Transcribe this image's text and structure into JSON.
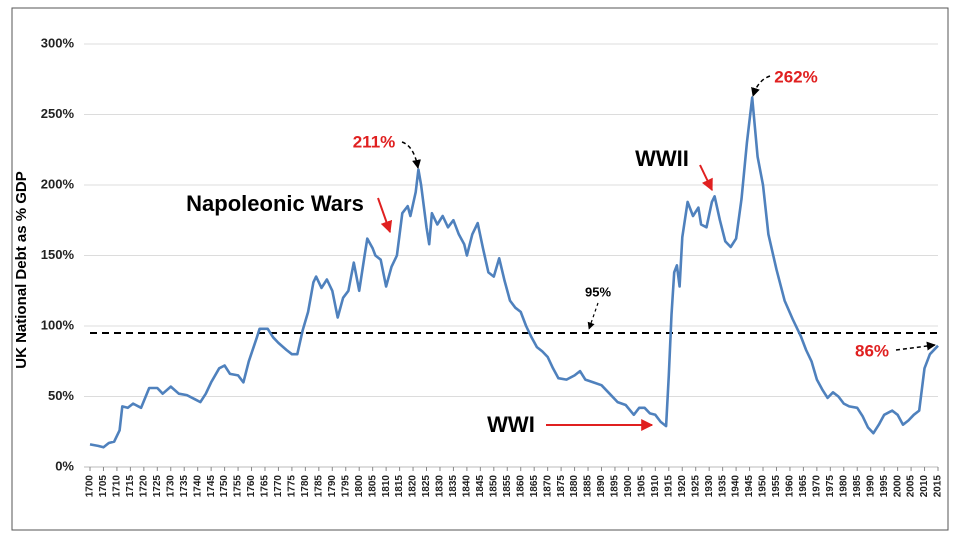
{
  "chart_data": {
    "type": "line",
    "y_label": "UK National Debt as % GDP",
    "x": [
      1700,
      1703,
      1705,
      1707,
      1709,
      1711,
      1712,
      1714,
      1716,
      1719,
      1722,
      1725,
      1727,
      1730,
      1733,
      1736,
      1739,
      1741,
      1743,
      1745,
      1748,
      1750,
      1752,
      1755,
      1757,
      1759,
      1762,
      1763,
      1766,
      1768,
      1770,
      1773,
      1775,
      1777,
      1779,
      1781,
      1783,
      1784,
      1786,
      1788,
      1790,
      1792,
      1794,
      1796,
      1798,
      1800,
      1802,
      1803,
      1805,
      1806,
      1808,
      1810,
      1812,
      1814,
      1816,
      1818,
      1819,
      1821,
      1822,
      1823,
      1825,
      1826,
      1827,
      1829,
      1831,
      1833,
      1835,
      1837,
      1839,
      1840,
      1842,
      1844,
      1846,
      1848,
      1850,
      1852,
      1854,
      1856,
      1858,
      1860,
      1862,
      1864,
      1866,
      1868,
      1870,
      1872,
      1874,
      1877,
      1880,
      1882,
      1884,
      1887,
      1890,
      1893,
      1896,
      1899,
      1902,
      1904,
      1906,
      1908,
      1910,
      1912,
      1914,
      1915,
      1916,
      1917,
      1918,
      1919,
      1920,
      1922,
      1924,
      1926,
      1927,
      1929,
      1931,
      1932,
      1934,
      1936,
      1938,
      1940,
      1942,
      1944,
      1946,
      1948,
      1950,
      1952,
      1955,
      1958,
      1961,
      1964,
      1966,
      1968,
      1970,
      1972,
      1974,
      1976,
      1978,
      1980,
      1982,
      1985,
      1987,
      1989,
      1991,
      1993,
      1995,
      1998,
      2000,
      2002,
      2004,
      2006,
      2008,
      2010,
      2012,
      2015
    ],
    "series": [
      {
        "name": "UK National Debt as % GDP",
        "color": "#4f81bd",
        "values": [
          16,
          15,
          14,
          17,
          18,
          26,
          43,
          42,
          45,
          42,
          56,
          56,
          52,
          57,
          52,
          51,
          48,
          46,
          52,
          60,
          70,
          72,
          66,
          65,
          60,
          75,
          92,
          98,
          98,
          92,
          88,
          83,
          80,
          80,
          97,
          110,
          131,
          135,
          127,
          133,
          125,
          106,
          120,
          125,
          145,
          125,
          150,
          162,
          155,
          150,
          147,
          128,
          142,
          150,
          180,
          185,
          178,
          195,
          211,
          200,
          170,
          158,
          180,
          172,
          178,
          170,
          175,
          165,
          158,
          150,
          165,
          173,
          155,
          138,
          135,
          148,
          132,
          118,
          113,
          110,
          100,
          92,
          85,
          82,
          78,
          70,
          63,
          62,
          65,
          68,
          62,
          60,
          58,
          52,
          46,
          44,
          37,
          42,
          42,
          38,
          37,
          32,
          29,
          65,
          108,
          138,
          143,
          128,
          163,
          188,
          178,
          184,
          172,
          170,
          188,
          192,
          175,
          160,
          156,
          162,
          190,
          230,
          262,
          220,
          200,
          165,
          140,
          118,
          105,
          93,
          83,
          75,
          62,
          55,
          49,
          53,
          50,
          45,
          43,
          42,
          36,
          28,
          24,
          30,
          37,
          40,
          37,
          30,
          33,
          37,
          40,
          70,
          80,
          86
        ]
      }
    ],
    "xlim": [
      1700,
      2015
    ],
    "xticks": [
      1700,
      1705,
      1710,
      1715,
      1720,
      1725,
      1730,
      1735,
      1740,
      1745,
      1750,
      1755,
      1760,
      1765,
      1770,
      1775,
      1780,
      1785,
      1790,
      1795,
      1800,
      1805,
      1810,
      1815,
      1820,
      1825,
      1830,
      1835,
      1840,
      1845,
      1850,
      1855,
      1860,
      1865,
      1870,
      1875,
      1880,
      1885,
      1890,
      1895,
      1900,
      1905,
      1910,
      1915,
      1920,
      1925,
      1930,
      1935,
      1940,
      1945,
      1950,
      1955,
      1960,
      1965,
      1970,
      1975,
      1980,
      1985,
      1990,
      1995,
      2000,
      2005,
      2010,
      2015
    ],
    "ylim": [
      0,
      300
    ],
    "yticks": [
      {
        "value": 0,
        "label": "0%"
      },
      {
        "value": 50,
        "label": "50%"
      },
      {
        "value": 100,
        "label": "100%"
      },
      {
        "value": 150,
        "label": "150%"
      },
      {
        "value": 200,
        "label": "200%"
      },
      {
        "value": 250,
        "label": "250%"
      },
      {
        "value": 300,
        "label": "300%"
      }
    ],
    "grid": true,
    "reference_line": {
      "value": 95,
      "label": "95%"
    },
    "annotations": [
      "Napoleonic Wars",
      "211%",
      "WWII",
      "262%",
      "WWI",
      "86%"
    ]
  }
}
